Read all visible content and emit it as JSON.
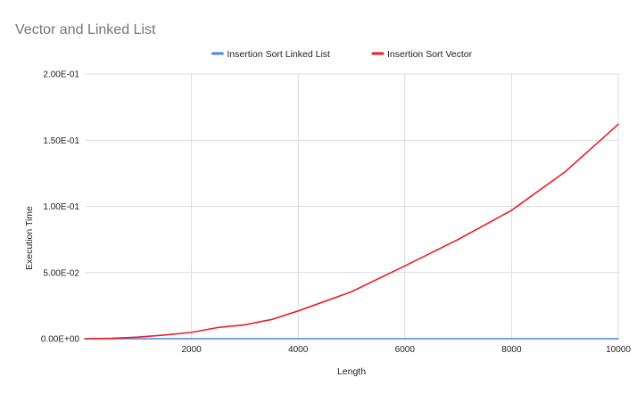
{
  "chart_data": {
    "type": "line",
    "title": "Vector and Linked List",
    "xlabel": "Length",
    "ylabel": "Execution Time",
    "xlim": [
      0,
      10000
    ],
    "ylim": [
      0,
      0.2
    ],
    "xticks": [
      2000,
      4000,
      6000,
      8000,
      10000
    ],
    "xtick_labels": [
      "2000",
      "4000",
      "6000",
      "8000",
      "10000"
    ],
    "yticks": [
      0,
      0.05,
      0.1,
      0.15,
      0.2
    ],
    "ytick_labels": [
      "0.00E+00",
      "5.00E-02",
      "1.00E-01",
      "1.50E-01",
      "2.00E-01"
    ],
    "grid": true,
    "legend_position": "top",
    "series": [
      {
        "name": "Insertion Sort Linked List",
        "color": "#4a86e8",
        "x": [
          0,
          1000,
          2000,
          3000,
          4000,
          5000,
          6000,
          7000,
          8000,
          9000,
          10000
        ],
        "y": [
          0,
          0,
          0,
          0,
          0,
          0,
          0,
          0,
          0,
          0,
          0
        ]
      },
      {
        "name": "Insertion Sort Vector",
        "color": "#ee1c24",
        "x": [
          0,
          500,
          1000,
          1500,
          2000,
          2500,
          3000,
          3500,
          4000,
          5000,
          6000,
          7000,
          8000,
          9000,
          10000
        ],
        "y": [
          0,
          0.0003,
          0.0012,
          0.0028,
          0.0048,
          0.0085,
          0.0105,
          0.0145,
          0.021,
          0.0355,
          0.055,
          0.075,
          0.097,
          0.126,
          0.162
        ]
      }
    ]
  }
}
